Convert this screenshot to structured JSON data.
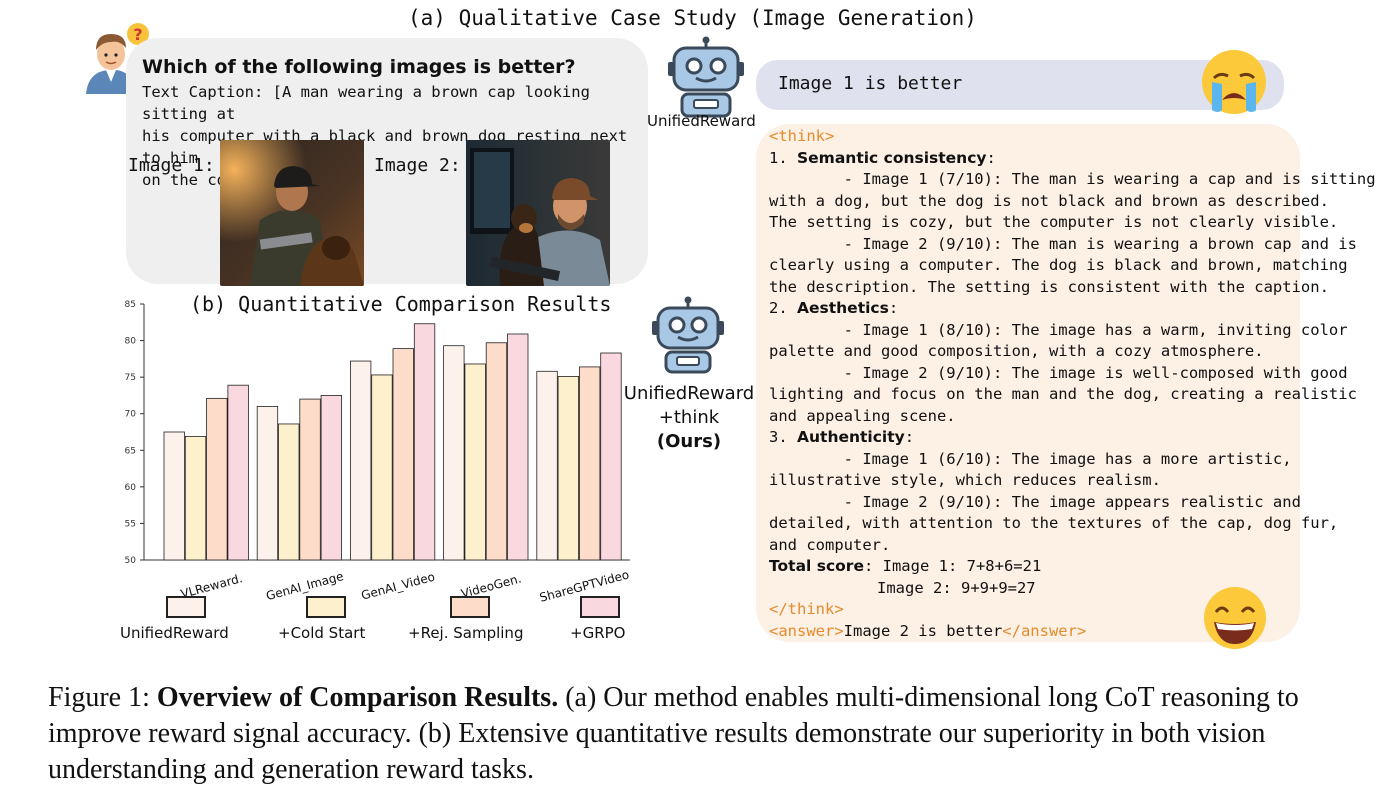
{
  "panel_a": {
    "title": "(a) Qualitative Case Study (Image Generation)",
    "question_title": "Which of the following images is better?",
    "caption_lines": [
      "Text Caption: [A man wearing a brown cap looking sitting at",
      "his computer with a black and brown dog resting next to him",
      "on the couch.]"
    ],
    "image1_label": "Image 1:",
    "image2_label": "Image 2:",
    "robot1_label": "UnifiedReward",
    "answer_text": "Image 1 is better",
    "robot2_label_lines": [
      "UnifiedReward",
      "+think",
      "(Ours)"
    ],
    "think_open": "<think>",
    "think_close": "</think>",
    "sections": [
      {
        "prefix": "1. ",
        "name": "Semantic consistency",
        "suffix": ":",
        "lines": [
          "        - Image 1 (7/10): The man is wearing a cap and is sitting",
          "with a dog, but the dog is not black and brown as described.",
          "The setting is cozy, but the computer is not clearly visible.",
          "        - Image 2 (9/10): The man is wearing a brown cap and is",
          "clearly using a computer. The dog is black and brown, matching",
          "the description. The setting is consistent with the caption."
        ]
      },
      {
        "prefix": "2. ",
        "name": "Aesthetics",
        "suffix": ":",
        "lines": [
          "        - Image 1 (8/10): The image has a warm, inviting color",
          "palette and good composition, with a cozy atmosphere.",
          "        - Image 2 (9/10): The image is well-composed with good",
          "lighting and focus on the man and the dog, creating a realistic",
          "and appealing scene."
        ]
      },
      {
        "prefix": "3. ",
        "name": "Authenticity",
        "suffix": ":",
        "lines": [
          "        - Image 1 (6/10): The image has a more artistic,",
          "illustrative style, which reduces realism.",
          "        - Image 2 (9/10): The image appears realistic and",
          "detailed, with attention to the textures of the cap, dog fur,",
          "and computer."
        ]
      }
    ],
    "total_label": "Total score",
    "total_line1": ": Image 1: 7+8+6=21",
    "total_line2": "Image 2: 9+9+9=27",
    "answer_open": "<answer>",
    "answer_value": "Image 2 is better",
    "answer_close": "</answer>"
  },
  "chart_data": {
    "type": "bar",
    "title": "(b) Quantitative Comparison Results",
    "categories": [
      "VLReward.",
      "GenAI_Image",
      "GenAI_Video",
      "VideoGen.",
      "ShareGPTVideo"
    ],
    "series": [
      {
        "name": "UnifiedReward",
        "color": "#fdf1ec",
        "values": [
          67.5,
          71.0,
          77.2,
          79.3,
          75.8
        ]
      },
      {
        "name": "+Cold Start",
        "color": "#fdf1cd",
        "values": [
          66.9,
          68.6,
          75.3,
          76.8,
          75.1
        ]
      },
      {
        "name": "+Rej. Sampling",
        "color": "#fddcca",
        "values": [
          72.1,
          72.0,
          78.9,
          79.7,
          76.4
        ]
      },
      {
        "name": "+GRPO",
        "color": "#fad8e0",
        "values": [
          73.9,
          72.5,
          82.3,
          80.9,
          78.3
        ]
      }
    ],
    "ylim": [
      50,
      85
    ],
    "yticks": [
      "50",
      "55",
      "60",
      "65",
      "70",
      "75",
      "80",
      "85"
    ],
    "legend_placement": "bottom"
  },
  "figure_caption": {
    "prefix": "Figure 1: ",
    "bold": "Overview of Comparison Results.",
    "rest": " (a) Our method enables multi-dimensional long CoT reasoning to improve reward signal accuracy. (b) Extensive quantitative results demonstrate our superiority in both vision understanding and generation reward tasks."
  }
}
